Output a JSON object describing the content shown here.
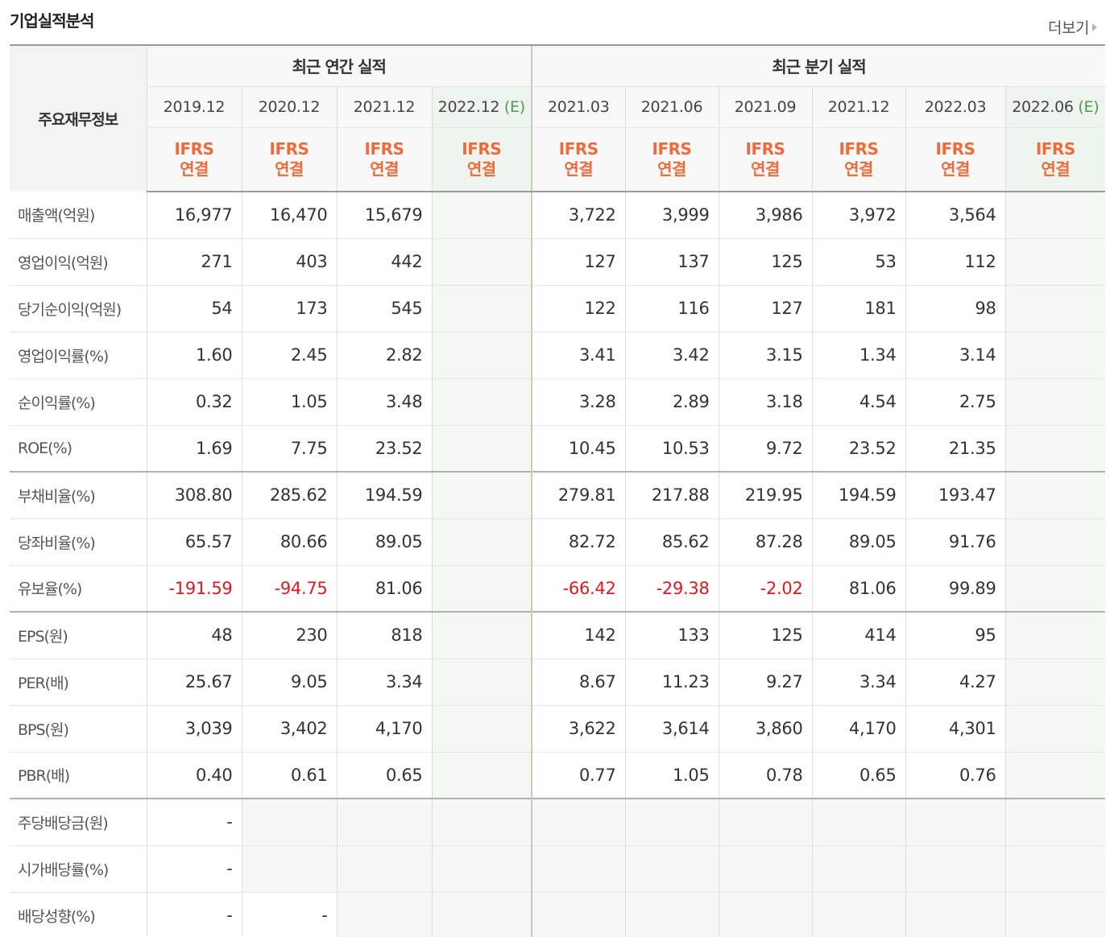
{
  "title": "기업실적분석",
  "more_label": "더보기",
  "header": {
    "label_col": "주요재무정보",
    "annual_group": "최근 연간 실적",
    "quarter_group": "최근 분기 실적",
    "annual_periods": [
      {
        "date": "2019.12",
        "est": ""
      },
      {
        "date": "2020.12",
        "est": ""
      },
      {
        "date": "2021.12",
        "est": ""
      },
      {
        "date": "2022.12",
        "est": "(E)"
      }
    ],
    "quarter_periods": [
      {
        "date": "2021.03",
        "est": ""
      },
      {
        "date": "2021.06",
        "est": ""
      },
      {
        "date": "2021.09",
        "est": ""
      },
      {
        "date": "2021.12",
        "est": ""
      },
      {
        "date": "2022.03",
        "est": ""
      },
      {
        "date": "2022.06",
        "est": "(E)"
      }
    ],
    "ifrs_line1": "IFRS",
    "ifrs_line2": "연결"
  },
  "rows": [
    {
      "label": "매출액(억원)",
      "values": [
        "16,977",
        "16,470",
        "15,679",
        "",
        "3,722",
        "3,999",
        "3,986",
        "3,972",
        "3,564",
        ""
      ]
    },
    {
      "label": "영업이익(억원)",
      "values": [
        "271",
        "403",
        "442",
        "",
        "127",
        "137",
        "125",
        "53",
        "112",
        ""
      ]
    },
    {
      "label": "당기순이익(억원)",
      "values": [
        "54",
        "173",
        "545",
        "",
        "122",
        "116",
        "127",
        "181",
        "98",
        ""
      ]
    },
    {
      "label": "영업이익률(%)",
      "values": [
        "1.60",
        "2.45",
        "2.82",
        "",
        "3.41",
        "3.42",
        "3.15",
        "1.34",
        "3.14",
        ""
      ]
    },
    {
      "label": "순이익률(%)",
      "values": [
        "0.32",
        "1.05",
        "3.48",
        "",
        "3.28",
        "2.89",
        "3.18",
        "4.54",
        "2.75",
        ""
      ]
    },
    {
      "label": "ROE(%)",
      "values": [
        "1.69",
        "7.75",
        "23.52",
        "",
        "10.45",
        "10.53",
        "9.72",
        "23.52",
        "21.35",
        ""
      ]
    },
    {
      "label": "부채비율(%)",
      "values": [
        "308.80",
        "285.62",
        "194.59",
        "",
        "279.81",
        "217.88",
        "219.95",
        "194.59",
        "193.47",
        ""
      ]
    },
    {
      "label": "당좌비율(%)",
      "values": [
        "65.57",
        "80.66",
        "89.05",
        "",
        "82.72",
        "85.62",
        "87.28",
        "89.05",
        "91.76",
        ""
      ]
    },
    {
      "label": "유보율(%)",
      "values": [
        "-191.59",
        "-94.75",
        "81.06",
        "",
        "-66.42",
        "-29.38",
        "-2.02",
        "81.06",
        "99.89",
        ""
      ]
    },
    {
      "label": "EPS(원)",
      "values": [
        "48",
        "230",
        "818",
        "",
        "142",
        "133",
        "125",
        "414",
        "95",
        ""
      ]
    },
    {
      "label": "PER(배)",
      "values": [
        "25.67",
        "9.05",
        "3.34",
        "",
        "8.67",
        "11.23",
        "9.27",
        "3.34",
        "4.27",
        ""
      ]
    },
    {
      "label": "BPS(원)",
      "values": [
        "3,039",
        "3,402",
        "4,170",
        "",
        "3,622",
        "3,614",
        "3,860",
        "4,170",
        "4,301",
        ""
      ]
    },
    {
      "label": "PBR(배)",
      "values": [
        "0.40",
        "0.61",
        "0.65",
        "",
        "0.77",
        "1.05",
        "0.78",
        "0.65",
        "0.76",
        ""
      ]
    },
    {
      "label": "주당배당금(원)",
      "values": [
        "-",
        null,
        null,
        null,
        null,
        null,
        null,
        null,
        null,
        null
      ]
    },
    {
      "label": "시가배당률(%)",
      "values": [
        "-",
        null,
        null,
        null,
        null,
        null,
        null,
        null,
        null,
        null
      ]
    },
    {
      "label": "배당성향(%)",
      "values": [
        "-",
        "-",
        null,
        null,
        null,
        null,
        null,
        null,
        null,
        null
      ]
    }
  ],
  "group_start_rows": [
    6,
    9,
    13
  ]
}
